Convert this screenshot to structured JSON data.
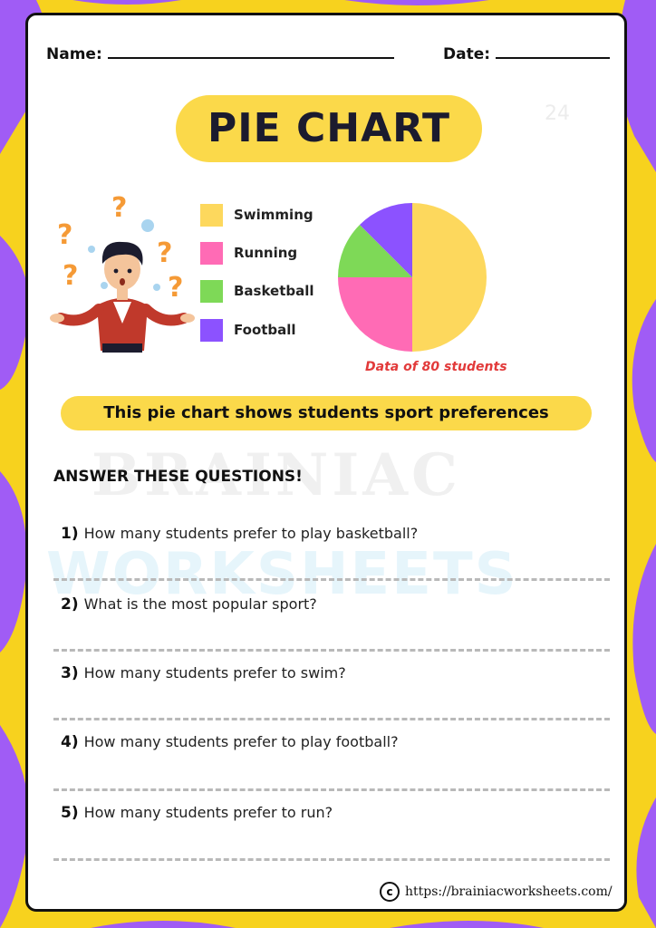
{
  "header": {
    "name_label": "Name:",
    "date_label": "Date:"
  },
  "title": "PIE CHART",
  "faint_number": "24",
  "legend": [
    {
      "label": "Swimming",
      "color": "#fdd85d"
    },
    {
      "label": "Running",
      "color": "#ff6bb5"
    },
    {
      "label": "Basketball",
      "color": "#7ed957"
    },
    {
      "label": "Football",
      "color": "#8c52ff"
    }
  ],
  "chart_data": {
    "type": "pie",
    "categories": [
      "Swimming",
      "Running",
      "Basketball",
      "Football"
    ],
    "values": [
      40,
      20,
      10,
      10
    ],
    "colors": [
      "#fdd85d",
      "#ff6bb5",
      "#7ed957",
      "#8c52ff"
    ],
    "caption": "Data of 80 students"
  },
  "info_text": "This pie chart shows students sport preferences",
  "questions_heading": "ANSWER THESE QUESTIONS!",
  "questions": [
    {
      "num": "1)",
      "text": "How many students prefer to play basketball?"
    },
    {
      "num": "2)",
      "text": "What is the most popular sport?"
    },
    {
      "num": "3)",
      "text": "How many students prefer to swim?"
    },
    {
      "num": "4)",
      "text": "How many students prefer to play football?"
    },
    {
      "num": "5)",
      "text": "How many students prefer to run?"
    }
  ],
  "watermark": {
    "line1": "BRAINIAC",
    "line2": "WORKSHEETS"
  },
  "footer": {
    "url": "https://brainiacworksheets.com/"
  }
}
